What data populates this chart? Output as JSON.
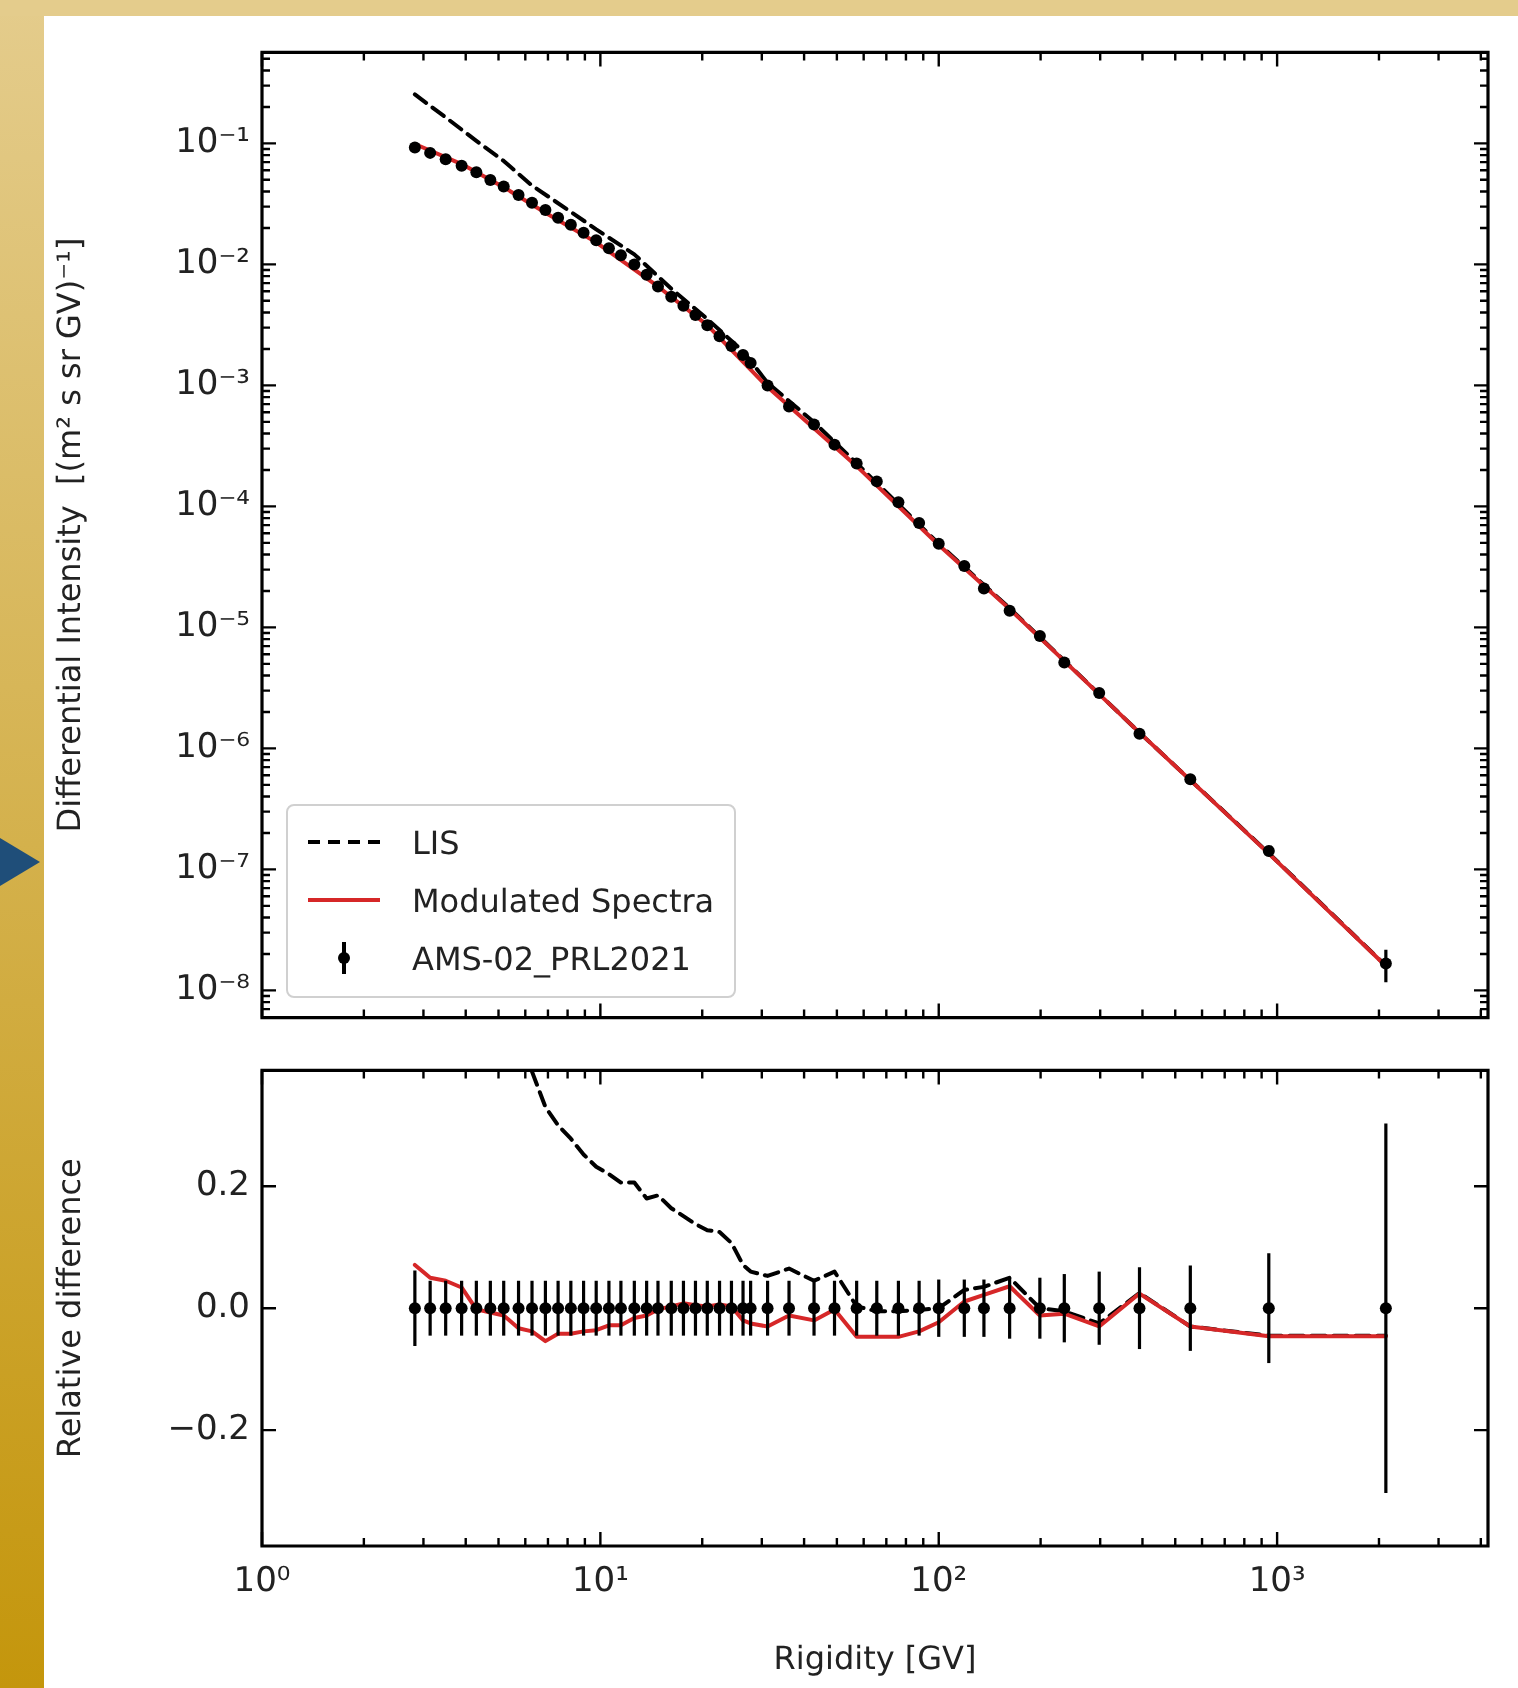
{
  "chart_data": [
    {
      "type": "line",
      "ylabel": "Differential Intensity  [(m² s sr GV)⁻¹]",
      "log": "xy",
      "grid": false,
      "legend": "bottom left",
      "tick_labels": "y",
      "xlim": [
        1,
        4200
      ],
      "xticks": [
        {
          "value": 1,
          "label": null
        },
        {
          "value": 10,
          "label": null
        },
        {
          "value": 100,
          "label": null
        },
        {
          "value": 1000,
          "label": null
        }
      ],
      "ylim": [
        5.96e-09,
        0.565
      ],
      "yticks": [
        {
          "value": 1e-08,
          "label": "10⁻⁸"
        },
        {
          "value": 1e-07,
          "label": "10⁻⁷"
        },
        {
          "value": 1e-06,
          "label": "10⁻⁶"
        },
        {
          "value": 1e-05,
          "label": "10⁻⁵"
        },
        {
          "value": 0.0001,
          "label": "10⁻⁴"
        },
        {
          "value": 0.001,
          "label": "10⁻³"
        },
        {
          "value": 0.01,
          "label": "10⁻²"
        },
        {
          "value": 0.1,
          "label": "10⁻¹"
        }
      ],
      "series": [
        {
          "name": "LIS",
          "type": "line",
          "color": "#000000",
          "line_style": "dashed",
          "marker": "none",
          "x": [
            2.83,
            3.49,
            4.3,
            5.18,
            6.28,
            8.18,
            9.72,
            12.6,
            16.2,
            20.7,
            26.4,
            31.2,
            42.8,
            57.2,
            100,
            162,
            392,
            945,
            2096
          ],
          "values": [
            0.254,
            0.164,
            0.105,
            0.0716,
            0.0448,
            0.0272,
            0.0195,
            0.0121,
            0.0063,
            0.00354,
            0.00191,
            0.00105,
            0.000496,
            0.000227,
            4.91e-05,
            1.44e-05,
            1.35e-06,
            1.36e-07,
            1.6e-08
          ]
        },
        {
          "name": "Modulated Spectra",
          "type": "line",
          "color": "#d62728",
          "line_style": "solid",
          "marker": "none",
          "x": [
            2.83,
            3.89,
            5.18,
            6.88,
            9.72,
            14.8,
            20.7,
            31.2,
            57.2,
            100,
            162,
            392,
            945,
            2096
          ],
          "values": [
            0.0989,
            0.0675,
            0.0435,
            0.0267,
            0.0152,
            0.00657,
            0.00315,
            0.00097,
            0.000215,
            4.8e-05,
            1.42e-05,
            1.35e-06,
            1.35e-07,
            1.59e-08
          ]
        },
        {
          "name": "AMS-02_PRL2021",
          "type": "scatter",
          "color": "#000000",
          "marker": "circle",
          "x": [
            2.83,
            3.14,
            3.49,
            3.89,
            4.3,
            4.73,
            5.18,
            5.73,
            6.28,
            6.88,
            7.5,
            8.18,
            8.92,
            9.72,
            10.6,
            11.5,
            12.6,
            13.7,
            14.8,
            16.2,
            17.6,
            19.1,
            20.7,
            22.5,
            24.4,
            26.4,
            27.8,
            31.2,
            36.1,
            42.8,
            49.2,
            57.2,
            65.6,
            76.0,
            87.5,
            100,
            119,
            136,
            162,
            199,
            235,
            298,
            392,
            554,
            945,
            2096
          ],
          "values": [
            0.0923,
            0.0835,
            0.074,
            0.0653,
            0.0578,
            0.0498,
            0.044,
            0.0375,
            0.0323,
            0.0282,
            0.0243,
            0.0213,
            0.0183,
            0.0158,
            0.0136,
            0.0119,
            0.01,
            0.00822,
            0.00658,
            0.00541,
            0.00455,
            0.00382,
            0.00314,
            0.00255,
            0.00212,
            0.00178,
            0.00153,
            0.001,
            0.00067,
            0.000475,
            0.000324,
            0.000226,
            0.000161,
            0.000108,
            7.28e-05,
            4.91e-05,
            3.22e-05,
            2.1e-05,
            1.37e-05,
            8.49e-06,
            5.13e-06,
            2.87e-06,
            1.32e-06,
            5.57e-07,
            1.42e-07,
            1.67e-08
          ],
          "errors": [
            null,
            null,
            null,
            null,
            null,
            null,
            null,
            null,
            null,
            null,
            null,
            null,
            null,
            null,
            null,
            null,
            null,
            null,
            null,
            null,
            null,
            null,
            null,
            null,
            null,
            null,
            null,
            null,
            null,
            null,
            null,
            null,
            null,
            null,
            null,
            null,
            null,
            null,
            null,
            null,
            null,
            null,
            null,
            null,
            null,
            5e-09
          ]
        }
      ]
    },
    {
      "type": "line",
      "xlabel": "Rigidity [GV]",
      "ylabel": "Relative difference",
      "log": "x",
      "grid": false,
      "xlim": [
        1,
        4200
      ],
      "xticks": [
        {
          "value": 1,
          "label": "10⁰"
        },
        {
          "value": 10,
          "label": "10¹"
        },
        {
          "value": 100,
          "label": "10²"
        },
        {
          "value": 1000,
          "label": "10³"
        }
      ],
      "ylim": [
        -0.39,
        0.39
      ],
      "yticks": [
        {
          "value": -0.2,
          "label": "−0.2"
        },
        {
          "value": 0,
          "label": "0.0"
        },
        {
          "value": 0.2,
          "label": "0.2"
        }
      ],
      "series": [
        {
          "type": "line",
          "color": "#000000",
          "line_style": "dashed",
          "marker": "none",
          "x": [
            6.28,
            6.88,
            7.5,
            8.18,
            8.92,
            9.72,
            10.6,
            11.5,
            12.6,
            13.7,
            14.8,
            16.2,
            17.6,
            19.1,
            20.7,
            22.5,
            24.4,
            26.4,
            27.8,
            31.2,
            36.1,
            42.8,
            49.2,
            57.2,
            65.6,
            76.0,
            87.5,
            100,
            119,
            136,
            162,
            199,
            235,
            298,
            392,
            554,
            945,
            2096
          ],
          "values": [
            0.388,
            0.33,
            0.3,
            0.278,
            0.252,
            0.232,
            0.22,
            0.206,
            0.206,
            0.18,
            0.185,
            0.164,
            0.151,
            0.138,
            0.128,
            0.125,
            0.107,
            0.071,
            0.06,
            0.053,
            0.065,
            0.045,
            0.06,
            0.003,
            -0.005,
            -0.005,
            -0.003,
            0.0,
            0.03,
            0.035,
            0.05,
            0.0,
            -0.005,
            -0.025,
            0.025,
            -0.03,
            -0.045,
            -0.045
          ]
        },
        {
          "type": "line",
          "color": "#d62728",
          "line_style": "solid",
          "marker": "none",
          "x": [
            2.83,
            3.14,
            3.49,
            3.89,
            4.3,
            4.73,
            5.18,
            5.73,
            6.28,
            6.88,
            7.5,
            8.18,
            8.92,
            9.72,
            10.6,
            11.5,
            12.6,
            13.7,
            14.8,
            16.2,
            17.6,
            19.1,
            20.7,
            22.5,
            24.4,
            26.4,
            27.8,
            31.2,
            36.1,
            42.8,
            49.2,
            57.2,
            65.6,
            76.0,
            87.5,
            100,
            119,
            136,
            162,
            199,
            235,
            298,
            392,
            554,
            945,
            2096
          ],
          "values": [
            0.071,
            0.05,
            0.045,
            0.034,
            -0.002,
            -0.007,
            -0.012,
            -0.033,
            -0.038,
            -0.054,
            -0.042,
            -0.042,
            -0.038,
            -0.036,
            -0.028,
            -0.028,
            -0.016,
            -0.012,
            -0.002,
            0.003,
            0.008,
            0.005,
            0.003,
            0.006,
            0.003,
            -0.02,
            -0.025,
            -0.03,
            -0.012,
            -0.02,
            -0.002,
            -0.047,
            -0.047,
            -0.047,
            -0.038,
            -0.023,
            0.011,
            0.022,
            0.036,
            -0.012,
            -0.009,
            -0.03,
            0.024,
            -0.03,
            -0.046,
            -0.046
          ]
        },
        {
          "type": "scatter",
          "color": "#000000",
          "marker": "circle",
          "x": [
            2.83,
            3.14,
            3.49,
            3.89,
            4.3,
            4.73,
            5.18,
            5.73,
            6.28,
            6.88,
            7.5,
            8.18,
            8.92,
            9.72,
            10.6,
            11.5,
            12.6,
            13.7,
            14.8,
            16.2,
            17.6,
            19.1,
            20.7,
            22.5,
            24.4,
            26.4,
            27.8,
            31.2,
            36.1,
            42.8,
            49.2,
            57.2,
            65.6,
            76.0,
            87.5,
            100,
            119,
            136,
            162,
            199,
            235,
            298,
            392,
            554,
            945,
            2096
          ],
          "values": [
            0,
            0,
            0,
            0,
            0,
            0,
            0,
            0,
            0,
            0,
            0,
            0,
            0,
            0,
            0,
            0,
            0,
            0,
            0,
            0,
            0,
            0,
            0,
            0,
            0,
            0,
            0,
            0,
            0,
            0,
            0,
            0,
            0,
            0,
            0,
            0,
            0,
            0,
            0,
            0,
            0,
            0,
            0,
            0,
            0,
            0
          ],
          "errors": [
            0.062,
            0.045,
            0.045,
            0.045,
            0.045,
            0.045,
            0.045,
            0.045,
            0.045,
            0.045,
            0.045,
            0.045,
            0.045,
            0.045,
            0.045,
            0.045,
            0.045,
            0.045,
            0.045,
            0.045,
            0.045,
            0.045,
            0.045,
            0.045,
            0.045,
            0.045,
            0.045,
            0.045,
            0.045,
            0.045,
            0.045,
            0.045,
            0.045,
            0.045,
            0.045,
            0.047,
            0.047,
            0.047,
            0.05,
            0.05,
            0.056,
            0.06,
            0.067,
            0.07,
            0.09,
            0.303
          ]
        }
      ]
    }
  ]
}
